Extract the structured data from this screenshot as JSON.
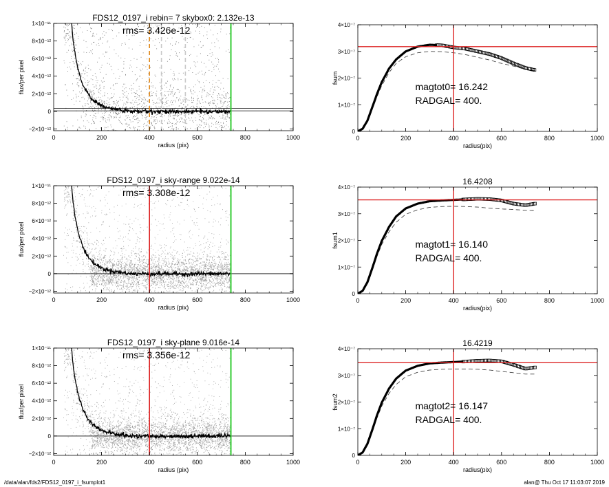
{
  "footer": {
    "left": "/data/alan/fds2/FDS12_0197_i_fsumplot1",
    "right": "alan@  Thu Oct 17 11:03:07 2019"
  },
  "colors": {
    "background": "#ffffff",
    "scatter_points": "#a0a0a0",
    "profile_line": "#000000",
    "orange_marker": "#e08a1e",
    "red_marker": "#dd2222",
    "green_marker": "#33cc33",
    "dashed_curve": "#444444"
  },
  "chart_data": [
    {
      "type": "scatter",
      "title": "FDS12_0197_i rebin= 7    skybox0:  2.132e-13",
      "annotation": "rms= 3.426e-12",
      "xlabel": "radius (pix)",
      "ylabel": "flux/per pixel",
      "xlim": [
        0,
        1000
      ],
      "ylim": [
        -2.2e-12,
        1e-11
      ],
      "xticks": [
        "0",
        "200",
        "400",
        "600",
        "800",
        "1000"
      ],
      "yticks": [
        {
          "label": "1×10⁻¹¹",
          "value": 1e-11
        },
        {
          "label": "8×10⁻¹²",
          "value": 8e-12
        },
        {
          "label": "6×10⁻¹²",
          "value": 6e-12
        },
        {
          "label": "4×10⁻¹²",
          "value": 4e-12
        },
        {
          "label": "2×10⁻¹²",
          "value": 2e-12
        },
        {
          "label": "0",
          "value": 0
        },
        {
          "label": "−2×10⁻¹²",
          "value": -2e-12
        }
      ],
      "scatter_style": "black-light",
      "profile": {
        "x": [
          75,
          80,
          90,
          100,
          110,
          120,
          130,
          140,
          150,
          160,
          170,
          180,
          190,
          200,
          220,
          240,
          260,
          280,
          300,
          320,
          350,
          380,
          400,
          450,
          500,
          550,
          600,
          650,
          700,
          740
        ],
        "y": [
          1e-11,
          8.3e-12,
          6.4e-12,
          5e-12,
          4e-12,
          3.2e-12,
          2.6e-12,
          2.1e-12,
          1.7e-12,
          1.4e-12,
          1.15e-12,
          9.5e-13,
          8e-13,
          6.5e-13,
          4.5e-13,
          3.2e-13,
          2.2e-13,
          1.5e-13,
          8e-14,
          0,
          -2e-14,
          0,
          -3e-14,
          0,
          -2e-14,
          -5e-14,
          0,
          -3e-14,
          -2e-14,
          0
        ]
      },
      "hlines": [
        {
          "y": 2.132e-13,
          "double": true
        }
      ],
      "vlines": [
        {
          "x": 400,
          "color": "orange",
          "style": "dashed"
        },
        {
          "x": 450,
          "color": "lightgray",
          "style": "dashed"
        },
        {
          "x": 550,
          "color": "lightgray",
          "style": "dashed"
        },
        {
          "x": 740,
          "color": "green",
          "style": "solid"
        }
      ]
    },
    {
      "type": "line",
      "title": "",
      "xlabel": "radius(pix)",
      "ylabel": "fsum",
      "xlim": [
        0,
        1000
      ],
      "ylim": [
        0,
        4e-07
      ],
      "xticks": [
        "0",
        "200",
        "400",
        "600",
        "800",
        "1000"
      ],
      "yticks": [
        {
          "label": "4×10⁻⁷",
          "value": 4e-07
        },
        {
          "label": "3×10⁻⁷",
          "value": 3e-07
        },
        {
          "label": "2×10⁻⁷",
          "value": 2e-07
        },
        {
          "label": "1×10⁻⁷",
          "value": 1e-07
        },
        {
          "label": "0",
          "value": 0
        }
      ],
      "annotations": [
        "magtot0=  16.242",
        "RADGAL=    400."
      ],
      "curve": {
        "x": [
          0,
          20,
          40,
          60,
          80,
          100,
          130,
          160,
          200,
          250,
          300,
          350,
          400,
          450,
          500,
          550,
          600,
          650,
          700,
          740
        ],
        "y": [
          0,
          1e-08,
          4e-08,
          9e-08,
          1.4e-07,
          1.85e-07,
          2.35e-07,
          2.7e-07,
          3e-07,
          3.18e-07,
          3.25e-07,
          3.23e-07,
          3.15e-07,
          3.1e-07,
          3e-07,
          2.9e-07,
          2.75e-07,
          2.55e-07,
          2.38e-07,
          2.3e-07
        ]
      },
      "dashed_curve": {
        "x": [
          0,
          20,
          40,
          60,
          80,
          100,
          130,
          160,
          200,
          250,
          300,
          350,
          400,
          450,
          500,
          550,
          600,
          650,
          700,
          740
        ],
        "y": [
          0,
          9e-09,
          3.8e-08,
          8.5e-08,
          1.3e-07,
          1.72e-07,
          2.2e-07,
          2.55e-07,
          2.8e-07,
          2.95e-07,
          3e-07,
          2.99e-07,
          2.95e-07,
          2.88e-07,
          2.78e-07,
          2.68e-07,
          2.55e-07,
          2.45e-07,
          2.33e-07,
          2.28e-07
        ]
      },
      "hline": 3.18e-07,
      "vline": 400,
      "marker_from_x": 330
    },
    {
      "type": "scatter",
      "title": "FDS12_0197_i sky-range  9.022e-14",
      "annotation": "rms= 3.308e-12",
      "xlabel": "radius (pix)",
      "ylabel": "flux/per pixel",
      "xlim": [
        0,
        1000
      ],
      "ylim": [
        -2.2e-12,
        1e-11
      ],
      "xticks": [
        "0",
        "200",
        "400",
        "600",
        "800",
        "1000"
      ],
      "yticks": [
        {
          "label": "1×10⁻¹¹",
          "value": 1e-11
        },
        {
          "label": "8×10⁻¹²",
          "value": 8e-12
        },
        {
          "label": "6×10⁻¹²",
          "value": 6e-12
        },
        {
          "label": "4×10⁻¹²",
          "value": 4e-12
        },
        {
          "label": "2×10⁻¹²",
          "value": 2e-12
        },
        {
          "label": "0",
          "value": 0
        },
        {
          "label": "−2×10⁻¹²",
          "value": -2e-12
        }
      ],
      "scatter_style": "gray-heavy",
      "profile": {
        "x": [
          75,
          80,
          90,
          100,
          110,
          120,
          130,
          140,
          150,
          160,
          170,
          180,
          190,
          200,
          220,
          240,
          260,
          280,
          300,
          320,
          350,
          380,
          400,
          450,
          500,
          550,
          600,
          650,
          700,
          740
        ],
        "y": [
          1e-11,
          8.3e-12,
          6.4e-12,
          5e-12,
          4e-12,
          3.2e-12,
          2.6e-12,
          2.1e-12,
          1.7e-12,
          1.4e-12,
          1.15e-12,
          9.5e-13,
          8e-13,
          6.5e-13,
          4.5e-13,
          3.2e-13,
          2.2e-13,
          1.5e-13,
          8e-14,
          0,
          -2e-14,
          0,
          -3e-14,
          0,
          -2e-14,
          -5e-14,
          0,
          -3e-14,
          -2e-14,
          0
        ]
      },
      "hlines": [
        {
          "y": 0,
          "double": false
        }
      ],
      "vlines": [
        {
          "x": 400,
          "color": "red",
          "style": "solid"
        },
        {
          "x": 740,
          "color": "green",
          "style": "solid"
        }
      ]
    },
    {
      "type": "line",
      "title": "16.4208",
      "xlabel": "radius(pix)",
      "ylabel": "fsum1",
      "xlim": [
        0,
        1000
      ],
      "ylim": [
        0,
        4e-07
      ],
      "xticks": [
        "0",
        "200",
        "400",
        "600",
        "800",
        "1000"
      ],
      "yticks": [
        {
          "label": "4×10⁻⁷",
          "value": 4e-07
        },
        {
          "label": "3×10⁻⁷",
          "value": 3e-07
        },
        {
          "label": "2×10⁻⁷",
          "value": 2e-07
        },
        {
          "label": "1×10⁻⁷",
          "value": 1e-07
        },
        {
          "label": "0",
          "value": 0
        }
      ],
      "annotations": [
        "magtot1=  16.140",
        "RADGAL=    400."
      ],
      "curve": {
        "x": [
          0,
          20,
          40,
          60,
          80,
          100,
          130,
          160,
          200,
          250,
          300,
          350,
          400,
          450,
          500,
          550,
          600,
          650,
          700,
          740
        ],
        "y": [
          0,
          1.1e-08,
          4.3e-08,
          9.5e-08,
          1.5e-07,
          1.98e-07,
          2.5e-07,
          2.9e-07,
          3.2e-07,
          3.38e-07,
          3.47e-07,
          3.5e-07,
          3.52e-07,
          3.54e-07,
          3.56e-07,
          3.55e-07,
          3.5e-07,
          3.38e-07,
          3.32e-07,
          3.38e-07
        ]
      },
      "dashed_curve": {
        "x": [
          0,
          20,
          40,
          60,
          80,
          100,
          130,
          160,
          200,
          250,
          300,
          350,
          400,
          450,
          500,
          550,
          600,
          650,
          700,
          740
        ],
        "y": [
          0,
          1e-08,
          4e-08,
          9e-08,
          1.4e-07,
          1.85e-07,
          2.32e-07,
          2.68e-07,
          2.98e-07,
          3.15e-07,
          3.24e-07,
          3.27e-07,
          3.28e-07,
          3.27e-07,
          3.25e-07,
          3.21e-07,
          3.18e-07,
          3.16e-07,
          3.13e-07,
          3.12e-07
        ]
      },
      "hline": 3.52e-07,
      "vline": 400,
      "marker_from_x": 440
    },
    {
      "type": "scatter",
      "title": "FDS12_0197_i sky-plane  9.016e-14",
      "annotation": "rms= 3.356e-12",
      "xlabel": "radius (pix)",
      "ylabel": "flux/per pixel",
      "xlim": [
        0,
        1000
      ],
      "ylim": [
        -2.2e-12,
        1e-11
      ],
      "xticks": [
        "0",
        "200",
        "400",
        "600",
        "800",
        "1000"
      ],
      "yticks": [
        {
          "label": "1×10⁻¹¹",
          "value": 1e-11
        },
        {
          "label": "8×10⁻¹²",
          "value": 8e-12
        },
        {
          "label": "6×10⁻¹²",
          "value": 6e-12
        },
        {
          "label": "4×10⁻¹²",
          "value": 4e-12
        },
        {
          "label": "2×10⁻¹²",
          "value": 2e-12
        },
        {
          "label": "0",
          "value": 0
        },
        {
          "label": "−2×10⁻¹²",
          "value": -2e-12
        }
      ],
      "scatter_style": "gray-heavy",
      "profile": {
        "x": [
          75,
          80,
          90,
          100,
          110,
          120,
          130,
          140,
          150,
          160,
          170,
          180,
          190,
          200,
          220,
          240,
          260,
          280,
          300,
          320,
          350,
          380,
          400,
          450,
          500,
          550,
          600,
          650,
          700,
          740
        ],
        "y": [
          1e-11,
          8.3e-12,
          6.4e-12,
          5e-12,
          4e-12,
          3.2e-12,
          2.6e-12,
          2.1e-12,
          1.7e-12,
          1.4e-12,
          1.15e-12,
          9.5e-13,
          8e-13,
          6.5e-13,
          4.5e-13,
          3.2e-13,
          2.2e-13,
          1.5e-13,
          8e-14,
          0,
          -2e-14,
          0,
          -3e-14,
          0,
          -2e-14,
          -5e-14,
          0,
          -3e-14,
          -2e-14,
          0
        ]
      },
      "hlines": [
        {
          "y": 0,
          "double": false
        }
      ],
      "vlines": [
        {
          "x": 400,
          "color": "red",
          "style": "solid"
        },
        {
          "x": 740,
          "color": "green",
          "style": "solid"
        }
      ]
    },
    {
      "type": "line",
      "title": "16.4219",
      "xlabel": "radius(pix)",
      "ylabel": "fsum2",
      "xlim": [
        0,
        1000
      ],
      "ylim": [
        0,
        4e-07
      ],
      "xticks": [
        "0",
        "200",
        "400",
        "600",
        "800",
        "1000"
      ],
      "yticks": [
        {
          "label": "4×10⁻⁷",
          "value": 4e-07
        },
        {
          "label": "3×10⁻⁷",
          "value": 3e-07
        },
        {
          "label": "2×10⁻⁷",
          "value": 2e-07
        },
        {
          "label": "1×10⁻⁷",
          "value": 1e-07
        },
        {
          "label": "0",
          "value": 0
        }
      ],
      "annotations": [
        "magtot2=  16.147",
        "RADGAL=    400."
      ],
      "curve": {
        "x": [
          0,
          20,
          40,
          60,
          80,
          100,
          130,
          160,
          200,
          250,
          300,
          350,
          400,
          450,
          500,
          550,
          600,
          650,
          700,
          740
        ],
        "y": [
          0,
          1.1e-08,
          4.3e-08,
          9.5e-08,
          1.5e-07,
          1.98e-07,
          2.5e-07,
          2.88e-07,
          3.18e-07,
          3.36e-07,
          3.45e-07,
          3.48e-07,
          3.5e-07,
          3.52e-07,
          3.55e-07,
          3.56e-07,
          3.53e-07,
          3.4e-07,
          3.25e-07,
          3.3e-07
        ]
      },
      "dashed_curve": {
        "x": [
          0,
          20,
          40,
          60,
          80,
          100,
          130,
          160,
          200,
          250,
          300,
          350,
          400,
          450,
          500,
          550,
          600,
          650,
          700,
          740
        ],
        "y": [
          0,
          1e-08,
          4e-08,
          9e-08,
          1.4e-07,
          1.85e-07,
          2.32e-07,
          2.66e-07,
          2.95e-07,
          3.12e-07,
          3.2e-07,
          3.23e-07,
          3.24e-07,
          3.24e-07,
          3.23e-07,
          3.2e-07,
          3.15e-07,
          3.1e-07,
          3.05e-07,
          3.05e-07
        ]
      },
      "hline": 3.48e-07,
      "vline": 400,
      "marker_from_x": 440
    }
  ]
}
